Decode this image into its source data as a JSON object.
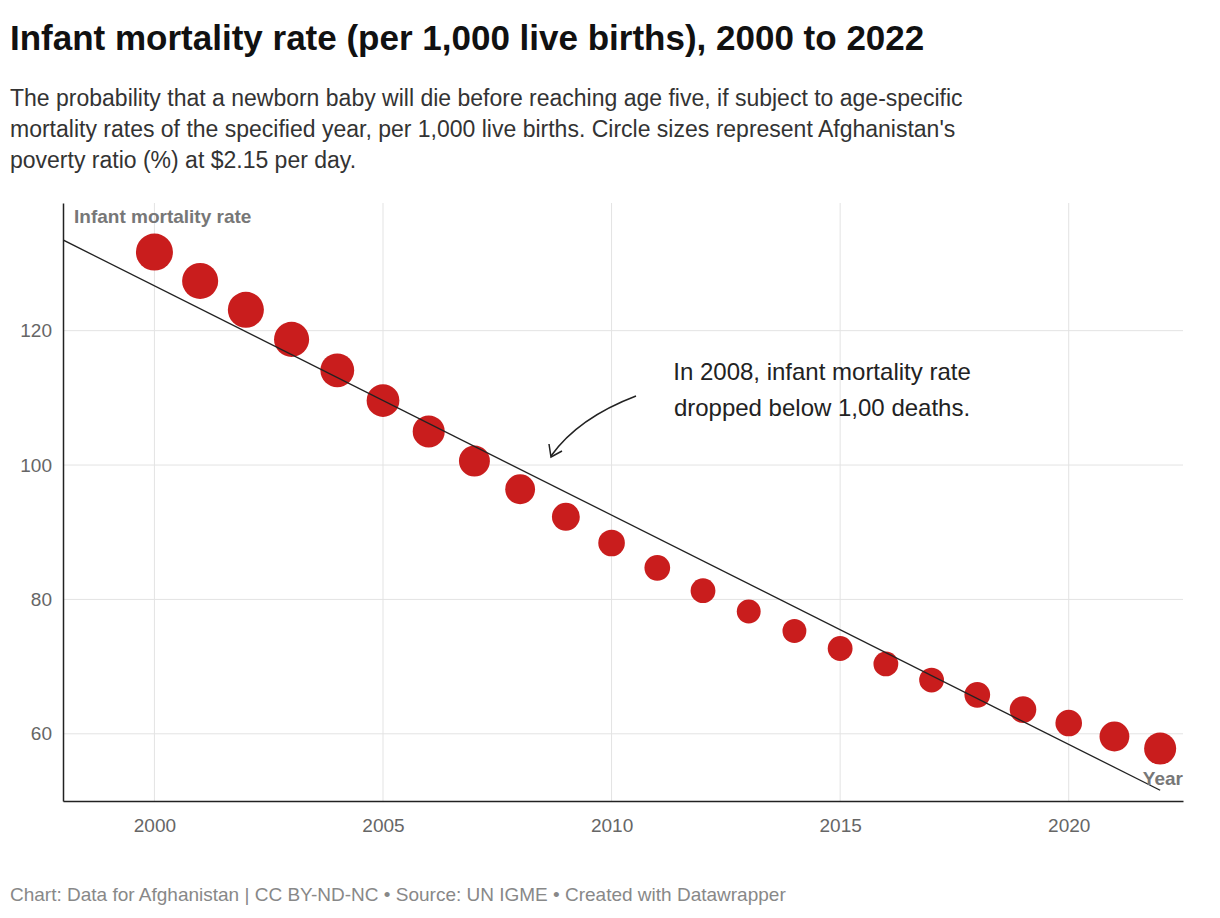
{
  "chart_data": {
    "type": "scatter",
    "title": "Infant mortality rate (per 1,000 live births), 2000 to 2022",
    "subtitle": [
      "The probability that a newborn baby will die before reaching age five, if subject to age-specific",
      "mortality rates of the specified year, per 1,000 live births. Circle sizes represent Afghanistan's",
      "poverty ratio (%) at $2.15 per day."
    ],
    "y_label": "Infant mortality rate",
    "x_label": "Year",
    "annotation": [
      "In 2008, infant mortality rate",
      "dropped below 1,00 deaths."
    ],
    "footer": "Chart: Data for Afghanistan | CC BY-ND-NC • Source: UN IGME  • Created with Datawrapper",
    "x": [
      2000,
      2001,
      2002,
      2003,
      2004,
      2005,
      2006,
      2007,
      2008,
      2009,
      2010,
      2011,
      2012,
      2013,
      2014,
      2015,
      2016,
      2017,
      2018,
      2019,
      2020,
      2021,
      2022
    ],
    "values": [
      131.7,
      127.4,
      123.1,
      118.7,
      114.1,
      109.6,
      105.0,
      100.6,
      96.4,
      92.3,
      88.4,
      84.7,
      81.3,
      78.2,
      75.3,
      72.7,
      70.4,
      68.0,
      65.8,
      63.6,
      61.6,
      59.6,
      57.8
    ],
    "sizes": [
      60,
      57,
      57,
      54,
      50,
      47,
      45,
      42,
      39,
      34,
      31,
      29,
      27,
      25,
      25,
      27,
      27,
      27,
      29,
      31,
      31,
      39,
      45
    ],
    "color": "#c91d1d",
    "marker": "circle",
    "trend_line": {
      "x": [
        1998,
        2022
      ],
      "values": [
        133.5,
        51.6
      ],
      "color": "#222222",
      "line_style": "solid"
    },
    "xlim": [
      1998,
      2022.5
    ],
    "xticks": [
      2000,
      2005,
      2010,
      2015,
      2020
    ],
    "ylim": [
      50,
      139
    ],
    "yticks": [
      60,
      80,
      100,
      120
    ],
    "grid": true
  }
}
